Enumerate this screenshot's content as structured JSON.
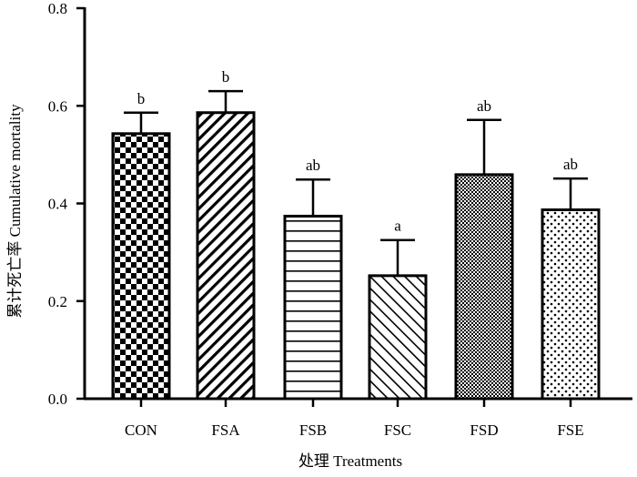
{
  "chart_data": {
    "type": "bar",
    "title": "",
    "xlabel": "处理 Treatments",
    "ylabel": "累计死亡率 Cumulative mortality",
    "ylim": [
      0,
      0.8
    ],
    "yticks": [
      "0.0",
      "0.2",
      "0.4",
      "0.6",
      "0.8"
    ],
    "ytick_values": [
      0.0,
      0.2,
      0.4,
      0.6,
      0.8
    ],
    "categories": [
      "CON",
      "FSA",
      "FSB",
      "FSC",
      "FSD",
      "FSE"
    ],
    "values": [
      0.543,
      0.586,
      0.374,
      0.252,
      0.459,
      0.387
    ],
    "errors": [
      0.043,
      0.044,
      0.075,
      0.073,
      0.112,
      0.064
    ],
    "significance": [
      "b",
      "b",
      "ab",
      "a",
      "ab",
      "ab"
    ],
    "patterns": [
      "checkerboard",
      "diagonal-up",
      "horizontal-lines",
      "diagonal-down",
      "dense-checker",
      "dots"
    ],
    "grid": false,
    "legend": "none"
  }
}
